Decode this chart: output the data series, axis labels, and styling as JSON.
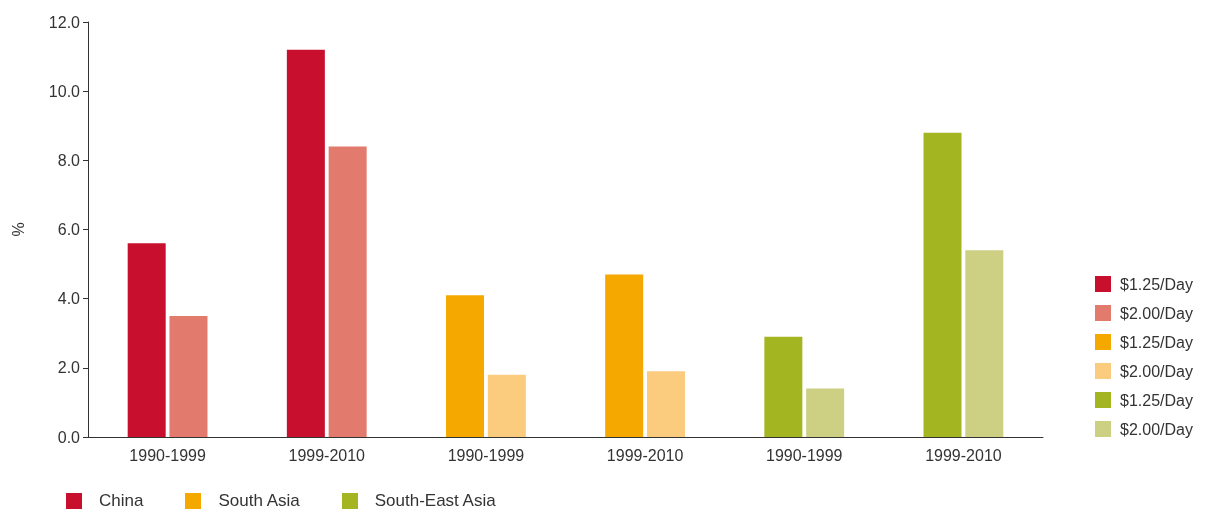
{
  "chart_data": {
    "type": "bar",
    "ylabel": "%",
    "categories": [
      "1990-1999",
      "1999-2010",
      "1990-1999",
      "1999-2010",
      "1990-1999",
      "1999-2010"
    ],
    "series": [
      {
        "name": "$1.25/Day",
        "color": "#c8102e",
        "values": [
          5.6,
          11.2,
          null,
          null,
          null,
          null
        ]
      },
      {
        "name": "$2.00/Day",
        "color": "#e27b6e",
        "values": [
          3.5,
          8.4,
          null,
          null,
          null,
          null
        ]
      },
      {
        "name": "$1.25/Day",
        "color": "#f5a800",
        "values": [
          null,
          null,
          4.1,
          4.7,
          null,
          null
        ]
      },
      {
        "name": "$2.00/Day",
        "color": "#fbcb7e",
        "values": [
          null,
          null,
          1.8,
          1.9,
          null,
          null
        ]
      },
      {
        "name": "$1.25/Day",
        "color": "#a3b520",
        "values": [
          null,
          null,
          null,
          null,
          2.9,
          8.8
        ]
      },
      {
        "name": "$2.00/Day",
        "color": "#cdd083",
        "values": [
          null,
          null,
          null,
          null,
          1.4,
          5.4
        ]
      }
    ],
    "ylim": [
      0,
      12
    ],
    "yticks": [
      {
        "value": 0,
        "label": "0.0"
      },
      {
        "value": 2,
        "label": "2.0"
      },
      {
        "value": 4,
        "label": "4.0"
      },
      {
        "value": 6,
        "label": "6.0"
      },
      {
        "value": 8,
        "label": "8.0"
      },
      {
        "value": 10,
        "label": "10.0"
      },
      {
        "value": 12,
        "label": "12.0"
      }
    ],
    "grid": false,
    "legend": "right",
    "annotations": [
      "China",
      "South Asia",
      "South-East Asia"
    ]
  }
}
